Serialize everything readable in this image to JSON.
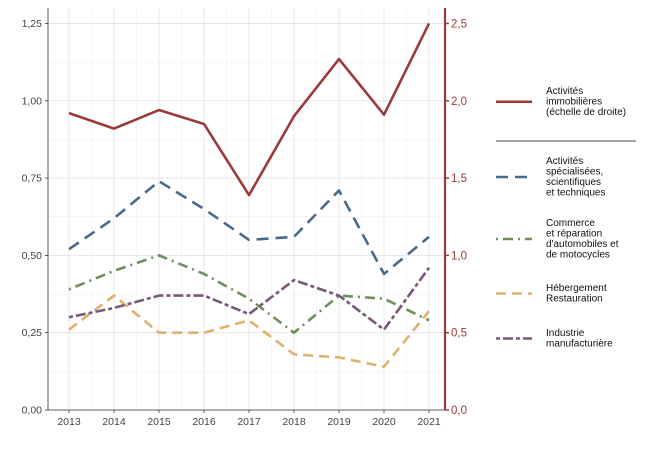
{
  "chart_data": {
    "type": "line",
    "title": "",
    "xlabel": "",
    "ylabel": "",
    "x": [
      "2013",
      "2014",
      "2015",
      "2016",
      "2017",
      "2018",
      "2019",
      "2020",
      "2021"
    ],
    "ylim_left": [
      0,
      1.3
    ],
    "ylim_right": [
      0,
      2.6
    ],
    "yticks_left": [
      "0,00",
      "0,25",
      "0,50",
      "0,75",
      "1,00",
      "1,25"
    ],
    "yticks_right": [
      "0,0",
      "0,5",
      "1,0",
      "1,5",
      "2,0",
      "2,5"
    ],
    "grid": true,
    "legend_position": "right",
    "right_axis_color": "#9b3a3a",
    "series": [
      {
        "name": "Activités immobilières (échelle de droite)",
        "legend_lines": [
          "Activités",
          "immobilières",
          "(échelle de droite)"
        ],
        "axis": "right",
        "color": "#9b3a3a",
        "dash": "solid",
        "values": [
          1.92,
          1.82,
          1.94,
          1.85,
          1.39,
          1.9,
          2.27,
          1.91,
          2.5
        ]
      },
      {
        "name": "Activités spécialisées, scientifiques et techniques",
        "legend_lines": [
          "Activités",
          "spécialisées,",
          "scientifiques",
          "et techniques"
        ],
        "axis": "left",
        "color": "#4a6a8a",
        "dash": "longdash",
        "values": [
          0.52,
          0.62,
          0.74,
          0.65,
          0.55,
          0.56,
          0.71,
          0.44,
          0.56
        ]
      },
      {
        "name": "Commerce et réparation d'automobiles et de motocycles",
        "legend_lines": [
          "Commerce",
          "et réparation",
          "d'automobiles et",
          "de motocycles"
        ],
        "axis": "left",
        "color": "#6e8f5c",
        "dash": "dotdash",
        "values": [
          0.39,
          0.45,
          0.5,
          0.44,
          0.36,
          0.25,
          0.37,
          0.36,
          0.29
        ]
      },
      {
        "name": "Hébergement Restauration",
        "legend_lines": [
          "Hébergement",
          "Restauration"
        ],
        "axis": "left",
        "color": "#ddb26e",
        "dash": "dashed",
        "values": [
          0.26,
          0.37,
          0.25,
          0.25,
          0.29,
          0.18,
          0.17,
          0.14,
          0.32
        ]
      },
      {
        "name": "Industrie manufacturière",
        "legend_lines": [
          "Industrie",
          "manufacturière"
        ],
        "axis": "left",
        "color": "#7a5878",
        "dash": "twodash",
        "values": [
          0.3,
          0.33,
          0.37,
          0.37,
          0.31,
          0.42,
          0.37,
          0.26,
          0.46
        ]
      }
    ]
  }
}
